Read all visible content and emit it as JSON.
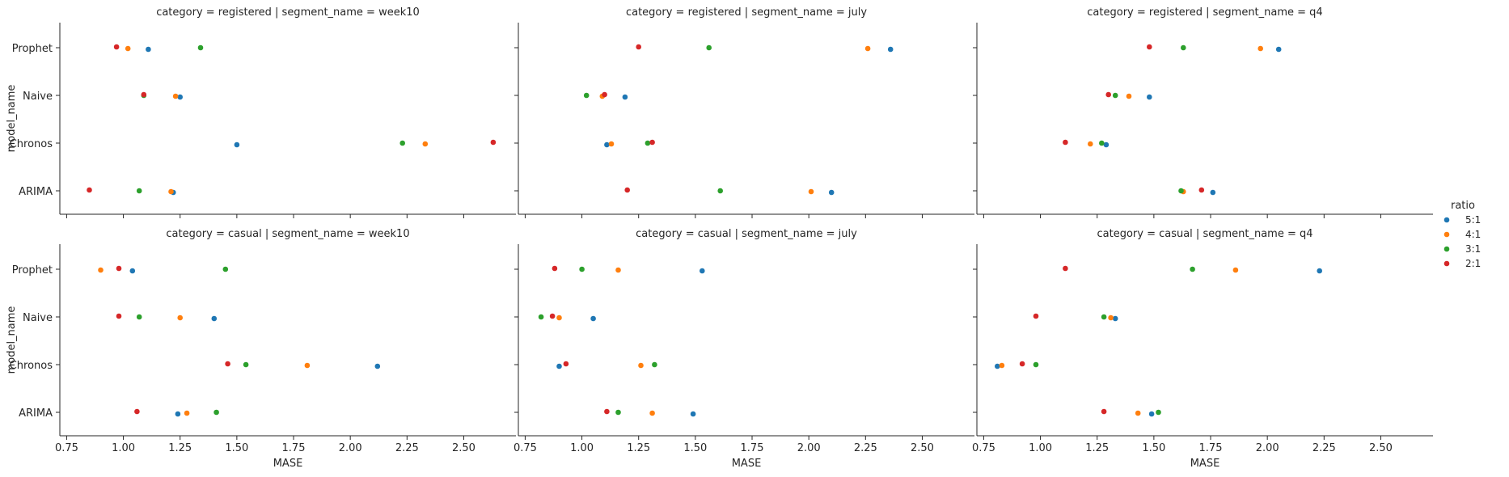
{
  "chart_data": {
    "type": "scatter",
    "layout": "facet-grid 2x3 strip plot",
    "xlabel": "MASE",
    "ylabel": "model_name",
    "xlim": [
      0.72,
      2.73
    ],
    "xticks": [
      "0.75",
      "1.00",
      "1.25",
      "1.50",
      "1.75",
      "2.00",
      "2.25",
      "2.50"
    ],
    "y_categories": [
      "Prophet",
      "Naive",
      "Chronos",
      "ARIMA"
    ],
    "legend": {
      "title": "ratio",
      "placement": "right",
      "entries": [
        {
          "name": "5:1",
          "color": "#1f77b4"
        },
        {
          "name": "4:1",
          "color": "#ff7f0e"
        },
        {
          "name": "3:1",
          "color": "#2ca02c"
        },
        {
          "name": "2:1",
          "color": "#d62728"
        }
      ]
    },
    "facets": [
      {
        "title": "category = registered | segment_name = week10",
        "row": 0,
        "col": 0,
        "points": {
          "Prophet": {
            "5:1": 1.11,
            "4:1": 1.02,
            "3:1": 1.34,
            "2:1": 0.97
          },
          "Naive": {
            "5:1": 1.25,
            "4:1": 1.23,
            "3:1": 1.09,
            "2:1": 1.09
          },
          "Chronos": {
            "5:1": 1.5,
            "4:1": 2.33,
            "3:1": 2.23,
            "2:1": 2.63
          },
          "ARIMA": {
            "5:1": 1.22,
            "4:1": 1.21,
            "3:1": 1.07,
            "2:1": 0.85
          }
        }
      },
      {
        "title": "category = registered | segment_name = july",
        "row": 0,
        "col": 1,
        "points": {
          "Prophet": {
            "5:1": 2.36,
            "4:1": 2.26,
            "3:1": 1.56,
            "2:1": 1.25
          },
          "Naive": {
            "5:1": 1.19,
            "4:1": 1.09,
            "3:1": 1.02,
            "2:1": 1.1
          },
          "Chronos": {
            "5:1": 1.11,
            "4:1": 1.13,
            "3:1": 1.29,
            "2:1": 1.31
          },
          "ARIMA": {
            "5:1": 2.1,
            "4:1": 2.01,
            "3:1": 1.61,
            "2:1": 1.2
          }
        }
      },
      {
        "title": "category = registered | segment_name = q4",
        "row": 0,
        "col": 2,
        "points": {
          "Prophet": {
            "5:1": 2.05,
            "4:1": 1.97,
            "3:1": 1.63,
            "2:1": 1.48
          },
          "Naive": {
            "5:1": 1.48,
            "4:1": 1.39,
            "3:1": 1.33,
            "2:1": 1.3
          },
          "Chronos": {
            "5:1": 1.29,
            "4:1": 1.22,
            "3:1": 1.27,
            "2:1": 1.11
          },
          "ARIMA": {
            "5:1": 1.76,
            "4:1": 1.63,
            "3:1": 1.62,
            "2:1": 1.71
          }
        }
      },
      {
        "title": "category = casual | segment_name = week10",
        "row": 1,
        "col": 0,
        "points": {
          "Prophet": {
            "5:1": 1.04,
            "4:1": 0.9,
            "3:1": 1.45,
            "2:1": 0.98
          },
          "Naive": {
            "5:1": 1.4,
            "4:1": 1.25,
            "3:1": 1.07,
            "2:1": 0.98
          },
          "Chronos": {
            "5:1": 2.12,
            "4:1": 1.81,
            "3:1": 1.54,
            "2:1": 1.46
          },
          "ARIMA": {
            "5:1": 1.24,
            "4:1": 1.28,
            "3:1": 1.41,
            "2:1": 1.06
          }
        }
      },
      {
        "title": "category = casual | segment_name = july",
        "row": 1,
        "col": 1,
        "points": {
          "Prophet": {
            "5:1": 1.53,
            "4:1": 1.16,
            "3:1": 1.0,
            "2:1": 0.88
          },
          "Naive": {
            "5:1": 1.05,
            "4:1": 0.9,
            "3:1": 0.82,
            "2:1": 0.87
          },
          "Chronos": {
            "5:1": 0.9,
            "4:1": 1.26,
            "3:1": 1.32,
            "2:1": 0.93
          },
          "ARIMA": {
            "5:1": 1.49,
            "4:1": 1.31,
            "3:1": 1.16,
            "2:1": 1.11
          }
        }
      },
      {
        "title": "category = casual | segment_name = q4",
        "row": 1,
        "col": 2,
        "points": {
          "Prophet": {
            "5:1": 2.23,
            "4:1": 1.86,
            "3:1": 1.67,
            "2:1": 1.11
          },
          "Naive": {
            "5:1": 1.33,
            "4:1": 1.31,
            "3:1": 1.28,
            "2:1": 0.98
          },
          "Chronos": {
            "5:1": 0.81,
            "4:1": 0.83,
            "3:1": 0.98,
            "2:1": 0.92
          },
          "ARIMA": {
            "5:1": 1.49,
            "4:1": 1.43,
            "3:1": 1.52,
            "2:1": 1.28
          }
        }
      }
    ]
  }
}
